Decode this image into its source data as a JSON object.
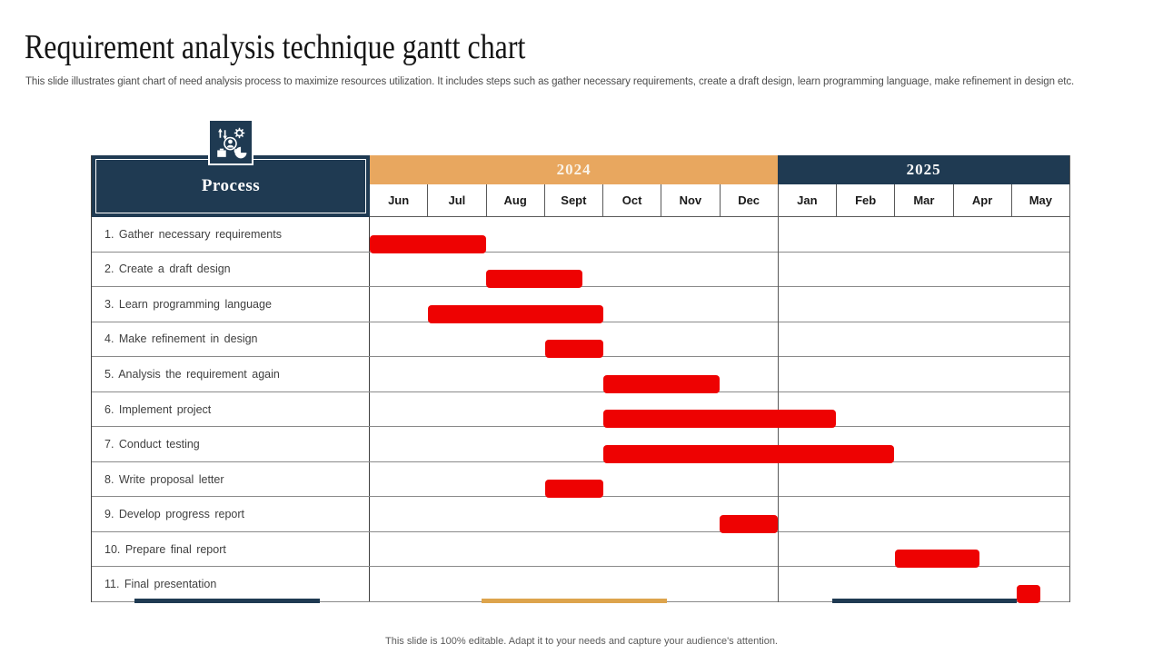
{
  "slide": {
    "title": "Requirement analysis technique gantt chart",
    "subtitle": "This slide illustrates giant chart of need analysis process to maximize resources utilization. It includes steps such as gather necessary requirements, create a draft design, learn programming language, make refinement in design etc.",
    "footer": "This slide is 100% editable.  Adapt it to your needs and capture your audience's attention."
  },
  "colors": {
    "navy": "#1F3A52",
    "tan": "#E8A75F",
    "bar_red": "#EE0202",
    "grid_line": "#8a8a8a",
    "dark_border": "#404040",
    "label_text": "#3f3f3f"
  },
  "chart_data": {
    "type": "gantt",
    "title": "Requirement analysis technique gantt chart",
    "process_header": "Process",
    "time_axis_unit": "months",
    "axis_range_note": "columns span Jun 2024 through May 2025, 12 equal columns",
    "year_groups": [
      {
        "label": "2024",
        "months": [
          "Jun",
          "Jul",
          "Aug",
          "Sept",
          "Oct",
          "Nov",
          "Dec"
        ]
      },
      {
        "label": "2025",
        "months": [
          "Jan",
          "Feb",
          "Mar",
          "Apr",
          "May"
        ]
      }
    ],
    "tasks": [
      {
        "label": "1. Gather necessary requirements",
        "start": 0,
        "end": 2
      },
      {
        "label": "2. Create a draft design",
        "start": 2,
        "end": 3.65
      },
      {
        "label": "3. Learn programming language",
        "start": 1,
        "end": 4
      },
      {
        "label": "4. Make refinement in design",
        "start": 3,
        "end": 4
      },
      {
        "label": "5. Analysis the requirement again",
        "start": 4,
        "end": 6
      },
      {
        "label": "6. Implement project",
        "start": 4,
        "end": 8
      },
      {
        "label": "7. Conduct testing",
        "start": 4,
        "end": 9
      },
      {
        "label": "8. Write proposal letter",
        "start": 3,
        "end": 4
      },
      {
        "label": "9. Develop progress report",
        "start": 6,
        "end": 7
      },
      {
        "label": "10. Prepare final report",
        "start": 9,
        "end": 10.45
      },
      {
        "label": "11. Final presentation",
        "start": 11.1,
        "end": 11.5
      }
    ],
    "bar_color": "#EE0202",
    "legend": "none",
    "grid": "horizontal row lines only; heavy divider between Dec and Jan"
  }
}
